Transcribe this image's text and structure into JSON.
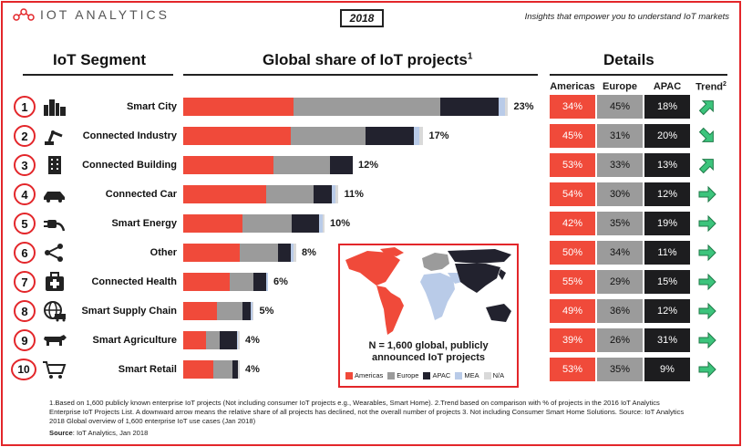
{
  "header": {
    "logo_text": "IOT ANALYTICS",
    "year": "2018",
    "tagline": "Insights that empower you to understand IoT markets"
  },
  "columns": {
    "segment": "IoT Segment",
    "share": "Global share of IoT projects",
    "share_sup": "1",
    "details": "Details",
    "americas": "Americas",
    "europe": "Europe",
    "apac": "APAC",
    "trend": "Trend",
    "trend_sup": "2"
  },
  "colors": {
    "americas": "#f04a3a",
    "europe": "#9b9b9b",
    "apac": "#22222e",
    "mea": "#b9cbe8",
    "na": "#d9d9d9",
    "accent": "#e3262a",
    "arrow": "#2fb56a"
  },
  "chart_data": {
    "type": "bar",
    "orientation": "horizontal",
    "stacked": true,
    "categories": [
      "Smart City",
      "Connected Industry",
      "Connected Building",
      "Connected Car",
      "Smart Energy",
      "Other",
      "Connected Health",
      "Smart Supply Chain",
      "Smart Agriculture",
      "Smart Retail"
    ],
    "total_labels": [
      "23%",
      "17%",
      "12%",
      "11%",
      "10%",
      "8%",
      "6%",
      "5%",
      "4%",
      "4%"
    ],
    "totals": [
      23,
      17,
      12,
      11,
      10,
      8,
      6,
      5,
      4,
      4
    ],
    "series": [
      {
        "name": "Americas",
        "values": [
          7.8,
          7.6,
          6.4,
          5.9,
          4.2,
          4.0,
          3.3,
          2.4,
          1.6,
          2.1
        ]
      },
      {
        "name": "Europe",
        "values": [
          10.4,
          5.3,
          4.0,
          3.3,
          3.5,
          2.7,
          1.7,
          1.8,
          1.0,
          1.4
        ]
      },
      {
        "name": "APAC",
        "values": [
          4.1,
          3.4,
          1.6,
          1.3,
          1.9,
          0.9,
          0.9,
          0.6,
          1.2,
          0.4
        ]
      },
      {
        "name": "MEA",
        "values": [
          0.5,
          0.4,
          0.0,
          0.3,
          0.3,
          0.2,
          0.1,
          0.1,
          0.1,
          0.0
        ]
      },
      {
        "name": "N/A",
        "values": [
          0.2,
          0.3,
          0.0,
          0.2,
          0.1,
          0.2,
          0.0,
          0.1,
          0.1,
          0.1
        ]
      }
    ],
    "details_table": {
      "columns": [
        "Americas",
        "Europe",
        "APAC"
      ],
      "rows": [
        [
          "34%",
          "45%",
          "18%"
        ],
        [
          "45%",
          "31%",
          "20%"
        ],
        [
          "53%",
          "33%",
          "13%"
        ],
        [
          "54%",
          "30%",
          "12%"
        ],
        [
          "42%",
          "35%",
          "19%"
        ],
        [
          "50%",
          "34%",
          "11%"
        ],
        [
          "55%",
          "29%",
          "15%"
        ],
        [
          "49%",
          "36%",
          "12%"
        ],
        [
          "39%",
          "26%",
          "31%"
        ],
        [
          "53%",
          "35%",
          "9%"
        ]
      ]
    },
    "trend": [
      "up",
      "down",
      "up",
      "flat",
      "flat",
      "flat",
      "flat",
      "flat",
      "flat",
      "flat"
    ]
  },
  "segments": [
    {
      "num": "1",
      "icon": "city-skyline-icon"
    },
    {
      "num": "2",
      "icon": "robot-arm-icon"
    },
    {
      "num": "3",
      "icon": "building-icon"
    },
    {
      "num": "4",
      "icon": "car-icon"
    },
    {
      "num": "5",
      "icon": "power-plug-icon"
    },
    {
      "num": "6",
      "icon": "share-icon"
    },
    {
      "num": "7",
      "icon": "medical-kit-icon"
    },
    {
      "num": "8",
      "icon": "globe-truck-icon"
    },
    {
      "num": "9",
      "icon": "cow-icon"
    },
    {
      "num": "10",
      "icon": "shopping-cart-icon"
    }
  ],
  "map": {
    "n_text_1": "N = 1,600 global, publicly",
    "n_text_2": "announced IoT projects",
    "legend": [
      "Americas",
      "Europe",
      "APAC",
      "MEA",
      "N/A"
    ]
  },
  "footnote": "1.Based on 1,600 publicly known enterprise IoT projects (Not including consumer IoT projects e.g., Wearables, Smart Home). 2.Trend based on comparison with % of projects in the 2016 IoT Analytics Enterprise IoT Projects List. A downward arrow means the relative share of all projects has declined, not the overall number of projects 3. Not including Consumer Smart Home Solutions. Source: IoT Analytics 2018 Global overview of 1,600 enterprise IoT use cases (Jan 2018)",
  "source_label": "Source",
  "source_text": ": IoT Analytics, Jan 2018"
}
